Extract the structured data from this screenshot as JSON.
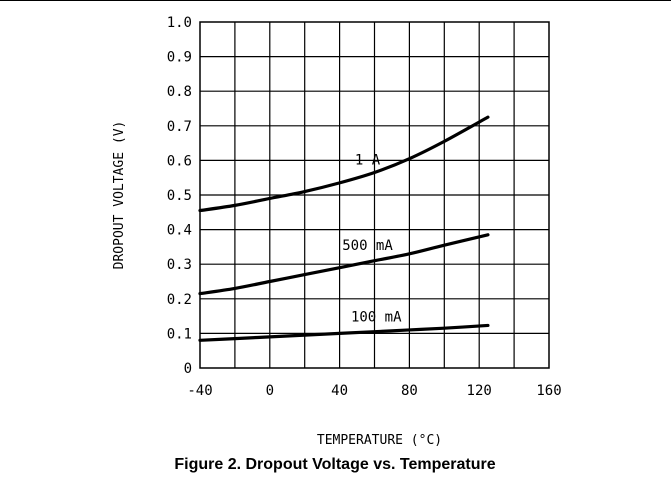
{
  "chart_data": {
    "type": "line",
    "title": "Figure 2. Dropout Voltage vs. Temperature",
    "xlabel": "TEMPERATURE (°C)",
    "ylabel": "DROPOUT VOLTAGE (V)",
    "xlim": [
      -40,
      160
    ],
    "ylim": [
      0,
      1.0
    ],
    "xticks": [
      -40,
      0,
      40,
      80,
      120,
      160
    ],
    "xtick_labels": [
      "-40",
      "0",
      "40",
      "80",
      "120",
      "160"
    ],
    "yticks": [
      0,
      0.1,
      0.2,
      0.3,
      0.4,
      0.5,
      0.6,
      0.7,
      0.8,
      0.9,
      1.0
    ],
    "ytick_labels": [
      "0",
      "0.1",
      "0.2",
      "0.3",
      "0.4",
      "0.5",
      "0.6",
      "0.7",
      "0.8",
      "0.9",
      "1.0"
    ],
    "grid": true,
    "series": [
      {
        "name": "1 A",
        "x": [
          -40,
          -20,
          0,
          20,
          40,
          60,
          80,
          100,
          125
        ],
        "y": [
          0.455,
          0.47,
          0.49,
          0.51,
          0.535,
          0.565,
          0.605,
          0.655,
          0.725
        ]
      },
      {
        "name": "500 mA",
        "x": [
          -40,
          -20,
          0,
          20,
          40,
          60,
          80,
          100,
          125
        ],
        "y": [
          0.215,
          0.23,
          0.25,
          0.27,
          0.29,
          0.31,
          0.33,
          0.355,
          0.385
        ]
      },
      {
        "name": "100 mA",
        "x": [
          -40,
          -20,
          0,
          20,
          40,
          60,
          80,
          100,
          125
        ],
        "y": [
          0.08,
          0.085,
          0.09,
          0.095,
          0.1,
          0.105,
          0.11,
          0.115,
          0.123
        ]
      }
    ]
  }
}
